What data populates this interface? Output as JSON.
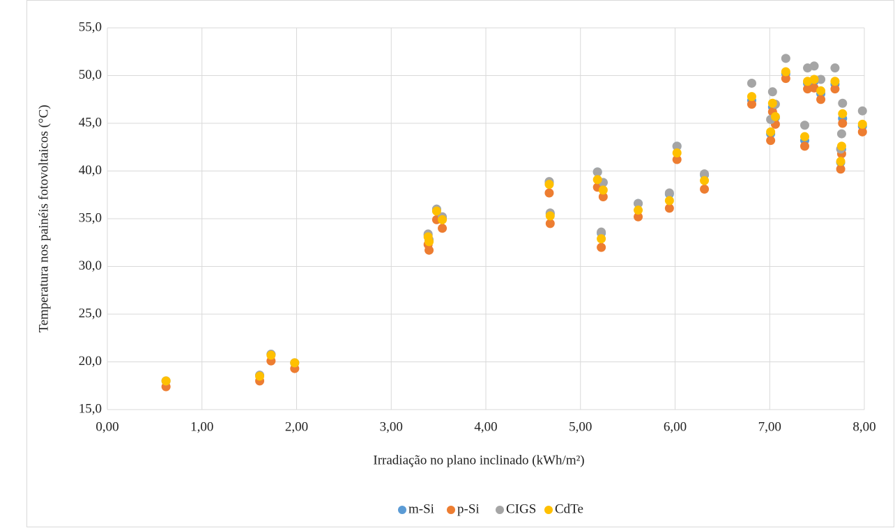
{
  "chart_data": {
    "type": "scatter",
    "x_label": "Irradiação no plano inclinado (kWh/m²)",
    "y_label": "Temperatura nos painéis fotovoltaicos (°C)",
    "x": [
      0.62,
      1.61,
      1.73,
      1.98,
      3.39,
      3.4,
      3.48,
      3.54,
      4.67,
      4.68,
      5.18,
      5.22,
      5.24,
      5.61,
      5.94,
      6.02,
      6.31,
      6.81,
      7.01,
      7.03,
      7.06,
      7.17,
      7.37,
      7.4,
      7.47,
      7.54,
      7.69,
      7.75,
      7.76,
      7.77,
      7.98
    ],
    "series": [
      {
        "name": "m-Si",
        "color": "#5b9bd5",
        "values": [
          18.0,
          18.6,
          20.8,
          19.9,
          33.3,
          32.7,
          36.0,
          35.1,
          38.8,
          35.5,
          39.9,
          33.5,
          38.8,
          36.6,
          37.6,
          42.6,
          39.6,
          47.4,
          43.9,
          46.7,
          45.6,
          50.2,
          43.2,
          49.2,
          49.4,
          48.1,
          49.1,
          40.9,
          42.3,
          45.5,
          44.7
        ]
      },
      {
        "name": "p-Si",
        "color": "#ed7d31",
        "values": [
          17.4,
          18.0,
          20.1,
          19.3,
          32.3,
          31.7,
          34.9,
          34.0,
          37.7,
          34.5,
          38.3,
          32.0,
          37.3,
          35.2,
          36.1,
          41.2,
          38.1,
          47.0,
          43.2,
          46.2,
          44.9,
          49.7,
          42.6,
          48.6,
          48.7,
          47.5,
          48.6,
          40.2,
          41.8,
          45.0,
          44.1
        ]
      },
      {
        "name": "CIGS",
        "color": "#a5a5a5",
        "values": [
          18.0,
          18.6,
          20.8,
          19.9,
          33.4,
          32.8,
          36.0,
          35.2,
          38.9,
          35.6,
          39.9,
          33.6,
          38.8,
          36.6,
          37.7,
          42.6,
          39.7,
          49.2,
          45.4,
          48.3,
          47.0,
          51.8,
          44.8,
          50.8,
          51.0,
          49.6,
          50.8,
          42.3,
          43.9,
          47.1,
          46.3
        ]
      },
      {
        "name": "CdTe",
        "color": "#ffc000",
        "values": [
          18.0,
          18.5,
          20.7,
          19.9,
          33.1,
          32.6,
          35.8,
          34.9,
          38.6,
          35.3,
          39.1,
          32.9,
          38.0,
          35.9,
          36.9,
          41.9,
          39.0,
          47.8,
          44.1,
          47.1,
          45.7,
          50.4,
          43.6,
          49.4,
          49.6,
          48.4,
          49.4,
          41.0,
          42.6,
          46.0,
          44.9
        ]
      }
    ],
    "xlim": [
      0,
      8
    ],
    "ylim": [
      15,
      55
    ],
    "xticks": [
      {
        "value": 0,
        "label": "0,00"
      },
      {
        "value": 1,
        "label": "1,00"
      },
      {
        "value": 2,
        "label": "2,00"
      },
      {
        "value": 3,
        "label": "3,00"
      },
      {
        "value": 4,
        "label": "4,00"
      },
      {
        "value": 5,
        "label": "5,00"
      },
      {
        "value": 6,
        "label": "6,00"
      },
      {
        "value": 7,
        "label": "7,00"
      },
      {
        "value": 8,
        "label": "8,00"
      }
    ],
    "yticks": [
      {
        "value": 15,
        "label": "15,0"
      },
      {
        "value": 20,
        "label": "20,0"
      },
      {
        "value": 25,
        "label": "25,0"
      },
      {
        "value": 30,
        "label": "30,0"
      },
      {
        "value": 35,
        "label": "35,0"
      },
      {
        "value": 40,
        "label": "40,0"
      },
      {
        "value": 45,
        "label": "45,0"
      },
      {
        "value": 50,
        "label": "50,0"
      },
      {
        "value": 55,
        "label": "55,0"
      }
    ],
    "grid": true,
    "legend": "bottom"
  }
}
